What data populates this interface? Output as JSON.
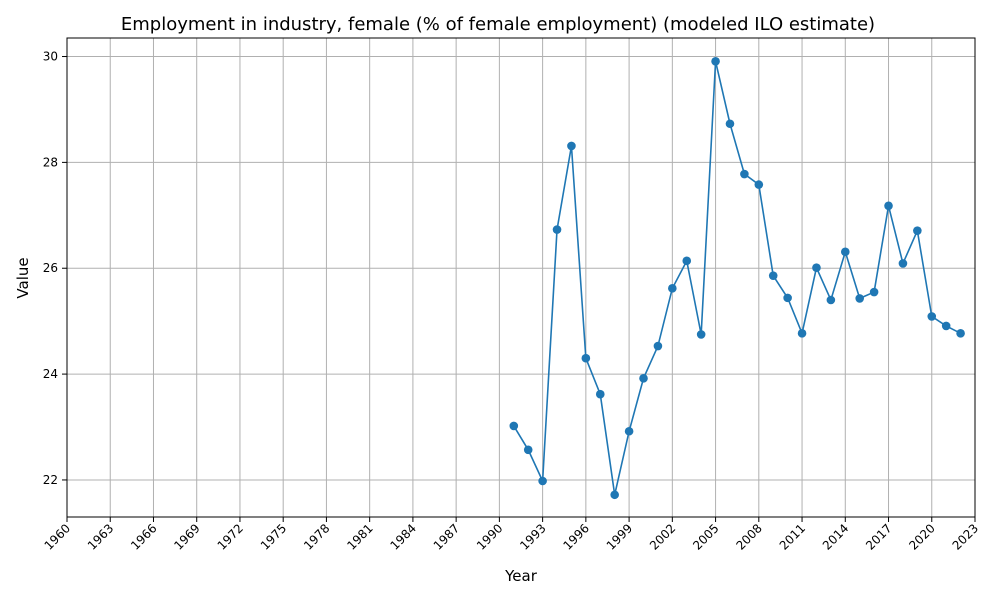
{
  "chart_data": {
    "type": "line",
    "title": "Employment in industry, female (% of female employment) (modeled ILO estimate)",
    "xlabel": "Year",
    "ylabel": "Value",
    "xlim": [
      1960,
      2023
    ],
    "ylim": [
      21.3,
      30.35
    ],
    "xticks": [
      1960,
      1963,
      1966,
      1969,
      1972,
      1975,
      1978,
      1981,
      1984,
      1987,
      1990,
      1993,
      1996,
      1999,
      2002,
      2005,
      2008,
      2011,
      2014,
      2017,
      2020,
      2023
    ],
    "yticks": [
      22,
      24,
      26,
      28,
      30
    ],
    "grid": true,
    "color": "#1f77b4",
    "marker": "circle",
    "x": [
      1991,
      1992,
      1993,
      1994,
      1995,
      1996,
      1997,
      1998,
      1999,
      2000,
      2001,
      2002,
      2003,
      2004,
      2005,
      2006,
      2007,
      2008,
      2009,
      2010,
      2011,
      2012,
      2013,
      2014,
      2015,
      2016,
      2017,
      2018,
      2019,
      2020,
      2021,
      2022
    ],
    "y": [
      23.02,
      22.57,
      21.98,
      26.73,
      28.31,
      24.3,
      23.62,
      21.72,
      22.92,
      23.92,
      24.53,
      25.62,
      26.14,
      24.75,
      29.91,
      28.73,
      27.78,
      27.58,
      25.86,
      25.44,
      24.77,
      26.01,
      25.4,
      26.31,
      25.43,
      25.55,
      27.18,
      26.09,
      26.71,
      25.09,
      24.91,
      24.77
    ]
  }
}
